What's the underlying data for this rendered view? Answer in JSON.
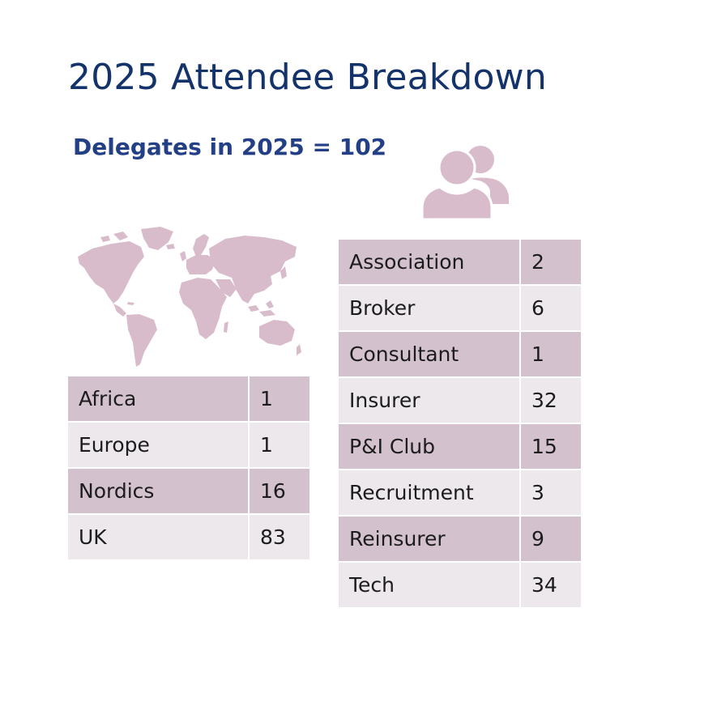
{
  "title": "2025 Attendee Breakdown",
  "subtitle": "Delegates in 2025 = 102",
  "colors": {
    "title": "#13336a",
    "subtitle": "#233f85",
    "row_dark": "#d3c2cd",
    "row_light": "#ede8ec",
    "icon": "#d9bccb"
  },
  "icons": {
    "people": "people-icon",
    "map": "world-map-icon"
  },
  "regions": [
    {
      "label": "Africa",
      "value": "1"
    },
    {
      "label": "Europe",
      "value": "1"
    },
    {
      "label": "Nordics",
      "value": "16"
    },
    {
      "label": "UK",
      "value": "83"
    }
  ],
  "sectors": [
    {
      "label": "Association",
      "value": "2"
    },
    {
      "label": "Broker",
      "value": "6"
    },
    {
      "label": "Consultant",
      "value": "1"
    },
    {
      "label": "Insurer",
      "value": "32"
    },
    {
      "label": "P&I Club",
      "value": "15"
    },
    {
      "label": "Recruitment",
      "value": "3"
    },
    {
      "label": "Reinsurer",
      "value": "9"
    },
    {
      "label": "Tech",
      "value": "34"
    }
  ]
}
